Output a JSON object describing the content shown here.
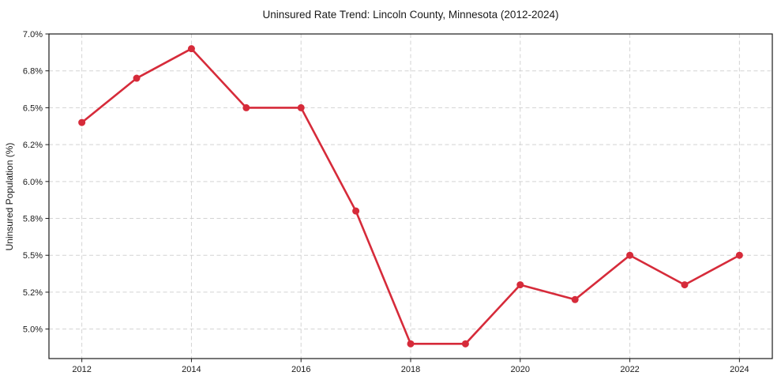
{
  "chart_data": {
    "type": "line",
    "title": "Uninsured Rate Trend: Lincoln County, Minnesota (2012-2024)",
    "xlabel": "",
    "ylabel": "Uninsured Population (%)",
    "x": [
      2012,
      2013,
      2014,
      2015,
      2016,
      2017,
      2018,
      2019,
      2020,
      2021,
      2022,
      2023,
      2024
    ],
    "series": [
      {
        "name": "Uninsured Population (%)",
        "values": [
          6.4,
          6.7,
          6.9,
          6.5,
          6.5,
          5.8,
          4.9,
          4.9,
          5.3,
          5.2,
          5.5,
          5.3,
          5.5
        ]
      }
    ],
    "xlim": [
      2011.4,
      2024.6
    ],
    "ylim": [
      4.8,
      7.0
    ],
    "x_tick_values": [
      2012,
      2014,
      2016,
      2018,
      2020,
      2022,
      2024
    ],
    "x_tick_labels": [
      "2012",
      "2014",
      "2016",
      "2018",
      "2020",
      "2022",
      "2024"
    ],
    "y_tick_values": [
      5.0,
      5.25,
      5.5,
      5.75,
      6.0,
      6.25,
      6.5,
      6.75,
      7.0
    ],
    "y_tick_labels": [
      "5.0%",
      "5.2%",
      "5.5%",
      "5.8%",
      "6.0%",
      "6.2%",
      "6.5%",
      "6.8%",
      "7.0%"
    ],
    "grid": true,
    "grid_style": "dashed",
    "legend": "none",
    "line_color": "#d62b3a",
    "grid_color": "#cccccc",
    "spine_color": "#1a1a1a",
    "marker": "circle"
  }
}
